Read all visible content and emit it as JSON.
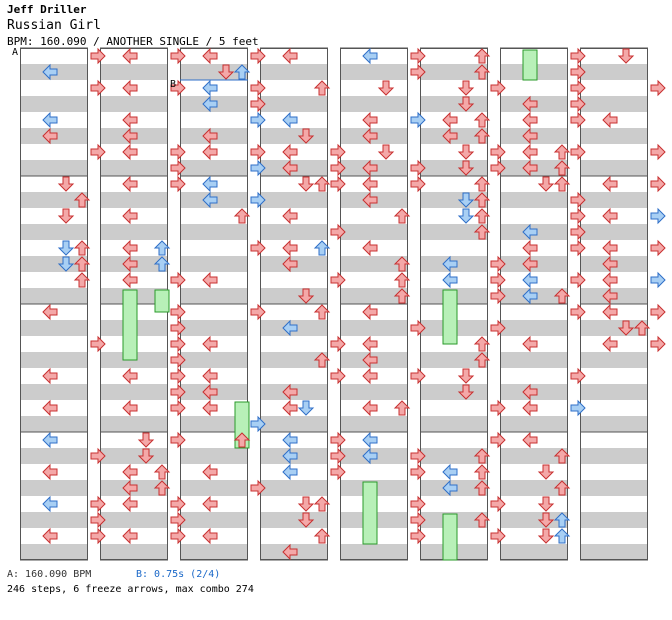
{
  "header": {
    "artist": "Jeff Driller",
    "song": "Russian Girl",
    "info": "BPM: 160.090 / ANOTHER SINGLE / 5 feet"
  },
  "footer": {
    "bpm_note": "A: 160.090 BPM",
    "stop_note": "B: 0.75s (2/4)",
    "summary": "246 steps, 6 freeze arrows, max combo 274"
  },
  "markers": {
    "a": "A",
    "b": "B"
  },
  "colors": {
    "tap": "#f4a8a8",
    "tap_stroke": "#c83030",
    "blue": "#a8cff4",
    "blue_stroke": "#2f6fc8",
    "freeze": "#b8f0b8",
    "freeze_stroke": "#2a9a2a",
    "stripe": "#cccccc"
  },
  "chart_data": {
    "type": "table",
    "columns": 8,
    "beats_per_column": 32,
    "arrows": [
      [
        [
          0,
          3,
          "r"
        ],
        [
          1,
          0,
          "b"
        ],
        [
          2,
          3,
          "r"
        ],
        [
          4,
          0,
          "b"
        ],
        [
          5,
          0,
          "r"
        ],
        [
          6,
          3,
          "r"
        ],
        [
          8,
          1,
          "r"
        ],
        [
          9,
          2,
          "r"
        ],
        [
          10,
          1,
          "r"
        ],
        [
          12,
          1,
          "b"
        ],
        [
          12,
          2,
          "r"
        ],
        [
          13,
          1,
          "b"
        ],
        [
          13,
          2,
          "r"
        ],
        [
          14,
          2,
          "r"
        ],
        [
          16,
          0,
          "r"
        ],
        [
          18,
          3,
          "r"
        ],
        [
          20,
          0,
          "r"
        ],
        [
          22,
          0,
          "r"
        ],
        [
          24,
          0,
          "b"
        ],
        [
          25,
          3,
          "r"
        ],
        [
          26,
          0,
          "r"
        ],
        [
          28,
          0,
          "b"
        ],
        [
          28,
          3,
          "r"
        ],
        [
          29,
          3,
          "r"
        ],
        [
          30,
          0,
          "r"
        ],
        [
          30,
          3,
          "r"
        ]
      ],
      [
        [
          0,
          0,
          "r"
        ],
        [
          0,
          3,
          "r"
        ],
        [
          2,
          0,
          "r"
        ],
        [
          2,
          3,
          "r"
        ],
        [
          4,
          0,
          "r"
        ],
        [
          5,
          0,
          "r"
        ],
        [
          6,
          0,
          "r"
        ],
        [
          6,
          3,
          "r"
        ],
        [
          7,
          3,
          "r"
        ],
        [
          8,
          0,
          "r"
        ],
        [
          8,
          3,
          "r"
        ],
        [
          10,
          0,
          "r"
        ],
        [
          12,
          0,
          "r"
        ],
        [
          12,
          2,
          "b"
        ],
        [
          13,
          0,
          "r"
        ],
        [
          13,
          2,
          "b"
        ],
        [
          14,
          0,
          "r"
        ],
        [
          14,
          3,
          "r"
        ],
        [
          16,
          3,
          "r"
        ],
        [
          17,
          3,
          "r"
        ],
        [
          18,
          3,
          "r"
        ],
        [
          19,
          3,
          "r"
        ],
        [
          20,
          0,
          "r"
        ],
        [
          20,
          3,
          "r"
        ],
        [
          21,
          3,
          "r"
        ],
        [
          22,
          0,
          "r"
        ],
        [
          22,
          3,
          "r"
        ],
        [
          24,
          1,
          "r"
        ],
        [
          24,
          3,
          "r"
        ],
        [
          25,
          1,
          "r"
        ],
        [
          26,
          0,
          "r"
        ],
        [
          26,
          2,
          "r"
        ],
        [
          27,
          0,
          "r"
        ],
        [
          27,
          2,
          "r"
        ],
        [
          28,
          0,
          "r"
        ],
        [
          28,
          3,
          "r"
        ],
        [
          29,
          3,
          "r"
        ],
        [
          30,
          0,
          "r"
        ],
        [
          30,
          3,
          "r"
        ]
      ],
      [
        [
          0,
          0,
          "r"
        ],
        [
          0,
          3,
          "r"
        ],
        [
          1,
          2,
          "b"
        ],
        [
          1,
          1,
          "r"
        ],
        [
          2,
          0,
          "b"
        ],
        [
          2,
          3,
          "r"
        ],
        [
          3,
          0,
          "b"
        ],
        [
          3,
          3,
          "r"
        ],
        [
          4,
          3,
          "b"
        ],
        [
          5,
          0,
          "r"
        ],
        [
          6,
          0,
          "r"
        ],
        [
          6,
          3,
          "r"
        ],
        [
          7,
          3,
          "b"
        ],
        [
          8,
          0,
          "b"
        ],
        [
          9,
          0,
          "b"
        ],
        [
          9,
          3,
          "b"
        ],
        [
          10,
          2,
          "r"
        ],
        [
          12,
          3,
          "r"
        ],
        [
          14,
          0,
          "r"
        ],
        [
          16,
          3,
          "r"
        ],
        [
          18,
          0,
          "r"
        ],
        [
          20,
          0,
          "r"
        ],
        [
          21,
          0,
          "r"
        ],
        [
          22,
          0,
          "r"
        ],
        [
          23,
          3,
          "b"
        ],
        [
          24,
          2,
          "r"
        ],
        [
          26,
          0,
          "r"
        ],
        [
          27,
          3,
          "r"
        ],
        [
          28,
          0,
          "r"
        ],
        [
          30,
          0,
          "r"
        ]
      ],
      [
        [
          0,
          0,
          "r"
        ],
        [
          2,
          2,
          "r"
        ],
        [
          4,
          0,
          "b"
        ],
        [
          5,
          1,
          "r"
        ],
        [
          6,
          0,
          "r"
        ],
        [
          6,
          3,
          "r"
        ],
        [
          7,
          0,
          "r"
        ],
        [
          7,
          3,
          "r"
        ],
        [
          8,
          1,
          "r"
        ],
        [
          8,
          2,
          "r"
        ],
        [
          8,
          3,
          "r"
        ],
        [
          10,
          0,
          "r"
        ],
        [
          11,
          3,
          "r"
        ],
        [
          12,
          0,
          "r"
        ],
        [
          12,
          2,
          "b"
        ],
        [
          13,
          0,
          "r"
        ],
        [
          14,
          3,
          "r"
        ],
        [
          15,
          1,
          "r"
        ],
        [
          16,
          2,
          "r"
        ],
        [
          17,
          0,
          "b"
        ],
        [
          18,
          3,
          "r"
        ],
        [
          19,
          2,
          "r"
        ],
        [
          20,
          3,
          "r"
        ],
        [
          21,
          0,
          "r"
        ],
        [
          22,
          0,
          "r"
        ],
        [
          22,
          1,
          "b"
        ],
        [
          24,
          0,
          "b"
        ],
        [
          24,
          3,
          "r"
        ],
        [
          25,
          0,
          "b"
        ],
        [
          25,
          3,
          "r"
        ],
        [
          26,
          0,
          "b"
        ],
        [
          26,
          3,
          "r"
        ],
        [
          28,
          1,
          "r"
        ],
        [
          28,
          2,
          "r"
        ],
        [
          29,
          1,
          "r"
        ],
        [
          30,
          2,
          "r"
        ],
        [
          31,
          0,
          "r"
        ]
      ],
      [
        [
          0,
          0,
          "b"
        ],
        [
          0,
          3,
          "r"
        ],
        [
          1,
          3,
          "r"
        ],
        [
          2,
          1,
          "r"
        ],
        [
          4,
          0,
          "r"
        ],
        [
          4,
          3,
          "b"
        ],
        [
          5,
          0,
          "r"
        ],
        [
          6,
          1,
          "r"
        ],
        [
          7,
          0,
          "r"
        ],
        [
          7,
          3,
          "r"
        ],
        [
          8,
          0,
          "r"
        ],
        [
          8,
          3,
          "r"
        ],
        [
          9,
          0,
          "r"
        ],
        [
          10,
          2,
          "r"
        ],
        [
          12,
          0,
          "r"
        ],
        [
          13,
          2,
          "r"
        ],
        [
          14,
          2,
          "r"
        ],
        [
          15,
          2,
          "r"
        ],
        [
          16,
          0,
          "r"
        ],
        [
          17,
          3,
          "r"
        ],
        [
          18,
          0,
          "r"
        ],
        [
          19,
          0,
          "r"
        ],
        [
          20,
          0,
          "r"
        ],
        [
          20,
          3,
          "r"
        ],
        [
          22,
          0,
          "r"
        ],
        [
          22,
          2,
          "r"
        ],
        [
          24,
          0,
          "b"
        ],
        [
          25,
          0,
          "b"
        ],
        [
          25,
          3,
          "r"
        ],
        [
          26,
          3,
          "r"
        ],
        [
          28,
          3,
          "r"
        ],
        [
          29,
          3,
          "r"
        ],
        [
          30,
          3,
          "r"
        ]
      ],
      [
        [
          0,
          2,
          "r"
        ],
        [
          1,
          2,
          "r"
        ],
        [
          2,
          1,
          "r"
        ],
        [
          2,
          3,
          "r"
        ],
        [
          3,
          1,
          "r"
        ],
        [
          4,
          0,
          "r"
        ],
        [
          4,
          2,
          "r"
        ],
        [
          5,
          0,
          "r"
        ],
        [
          5,
          2,
          "r"
        ],
        [
          6,
          1,
          "r"
        ],
        [
          6,
          3,
          "r"
        ],
        [
          7,
          1,
          "r"
        ],
        [
          7,
          3,
          "r"
        ],
        [
          8,
          2,
          "r"
        ],
        [
          9,
          1,
          "b"
        ],
        [
          9,
          2,
          "r"
        ],
        [
          10,
          1,
          "b"
        ],
        [
          10,
          2,
          "r"
        ],
        [
          11,
          2,
          "r"
        ],
        [
          13,
          0,
          "b"
        ],
        [
          13,
          3,
          "r"
        ],
        [
          14,
          0,
          "b"
        ],
        [
          14,
          3,
          "r"
        ],
        [
          15,
          3,
          "r"
        ],
        [
          17,
          3,
          "r"
        ],
        [
          18,
          2,
          "r"
        ],
        [
          19,
          2,
          "r"
        ],
        [
          20,
          1,
          "r"
        ],
        [
          21,
          1,
          "r"
        ],
        [
          22,
          3,
          "r"
        ],
        [
          24,
          3,
          "r"
        ],
        [
          25,
          2,
          "r"
        ],
        [
          26,
          0,
          "b"
        ],
        [
          26,
          2,
          "r"
        ],
        [
          27,
          0,
          "b"
        ],
        [
          27,
          2,
          "r"
        ],
        [
          28,
          3,
          "r"
        ],
        [
          29,
          2,
          "r"
        ],
        [
          30,
          3,
          "r"
        ]
      ],
      [
        [
          0,
          3,
          "r"
        ],
        [
          1,
          3,
          "r"
        ],
        [
          2,
          3,
          "r"
        ],
        [
          3,
          0,
          "r"
        ],
        [
          3,
          3,
          "r"
        ],
        [
          4,
          0,
          "r"
        ],
        [
          4,
          3,
          "r"
        ],
        [
          5,
          0,
          "r"
        ],
        [
          6,
          0,
          "r"
        ],
        [
          6,
          2,
          "r"
        ],
        [
          6,
          3,
          "r"
        ],
        [
          7,
          0,
          "r"
        ],
        [
          7,
          2,
          "r"
        ],
        [
          8,
          1,
          "r"
        ],
        [
          8,
          2,
          "r"
        ],
        [
          9,
          3,
          "r"
        ],
        [
          10,
          3,
          "r"
        ],
        [
          11,
          0,
          "b"
        ],
        [
          11,
          3,
          "r"
        ],
        [
          12,
          0,
          "r"
        ],
        [
          12,
          3,
          "r"
        ],
        [
          13,
          0,
          "r"
        ],
        [
          14,
          0,
          "b"
        ],
        [
          14,
          3,
          "r"
        ],
        [
          15,
          0,
          "b"
        ],
        [
          15,
          2,
          "r"
        ],
        [
          16,
          3,
          "r"
        ],
        [
          18,
          0,
          "r"
        ],
        [
          20,
          3,
          "r"
        ],
        [
          21,
          0,
          "r"
        ],
        [
          22,
          0,
          "r"
        ],
        [
          22,
          3,
          "b"
        ],
        [
          24,
          0,
          "r"
        ],
        [
          25,
          2,
          "r"
        ],
        [
          26,
          1,
          "r"
        ],
        [
          27,
          2,
          "r"
        ],
        [
          28,
          1,
          "r"
        ],
        [
          29,
          1,
          "r"
        ],
        [
          29,
          2,
          "b"
        ],
        [
          30,
          1,
          "r"
        ],
        [
          30,
          2,
          "b"
        ]
      ],
      [
        [
          0,
          1,
          "r"
        ],
        [
          2,
          3,
          "r"
        ],
        [
          4,
          0,
          "r"
        ],
        [
          6,
          3,
          "r"
        ],
        [
          8,
          0,
          "r"
        ],
        [
          8,
          3,
          "r"
        ],
        [
          10,
          0,
          "r"
        ],
        [
          10,
          3,
          "b"
        ],
        [
          12,
          0,
          "r"
        ],
        [
          12,
          3,
          "r"
        ],
        [
          13,
          0,
          "r"
        ],
        [
          14,
          0,
          "r"
        ],
        [
          14,
          3,
          "b"
        ],
        [
          15,
          0,
          "r"
        ],
        [
          16,
          0,
          "r"
        ],
        [
          16,
          3,
          "r"
        ],
        [
          17,
          1,
          "r"
        ],
        [
          17,
          2,
          "r"
        ],
        [
          18,
          0,
          "r"
        ],
        [
          18,
          3,
          "r"
        ]
      ]
    ],
    "freezes": [
      [
        1,
        0,
        15,
        19.5
      ],
      [
        1,
        2,
        15,
        16.5
      ],
      [
        2,
        2,
        22,
        25
      ],
      [
        4,
        0,
        27,
        31
      ],
      [
        5,
        0,
        15,
        18.5
      ],
      [
        5,
        0,
        29,
        32
      ],
      [
        6,
        0,
        0,
        2
      ]
    ]
  }
}
